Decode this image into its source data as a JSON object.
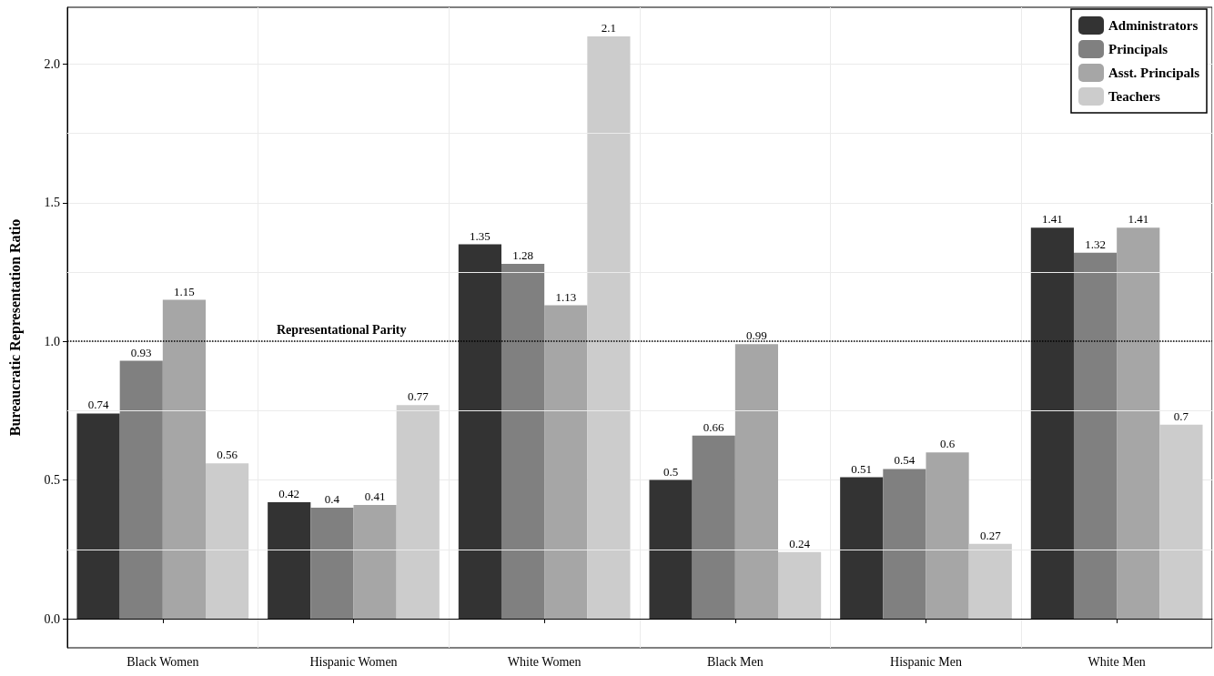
{
  "chart_data": {
    "type": "bar",
    "ylabel": "Bureaucratic Representation Ratio",
    "categories": [
      "Black Women",
      "Hispanic Women",
      "White Women",
      "Black Men",
      "Hispanic Men",
      "White Men"
    ],
    "series": [
      {
        "name": "Administrators",
        "color": "#333333",
        "values": [
          0.74,
          0.42,
          1.35,
          0.5,
          0.51,
          1.41
        ]
      },
      {
        "name": "Principals",
        "color": "#808080",
        "values": [
          0.93,
          0.4,
          1.28,
          0.66,
          0.54,
          1.32
        ]
      },
      {
        "name": "Asst. Principals",
        "color": "#a6a6a6",
        "values": [
          1.15,
          0.41,
          1.13,
          0.99,
          0.6,
          1.41
        ]
      },
      {
        "name": "Teachers",
        "color": "#cccccc",
        "values": [
          0.56,
          0.77,
          2.1,
          0.24,
          0.27,
          0.7
        ]
      }
    ],
    "ylim": [
      -0.105,
      2.205
    ],
    "yticks": [
      {
        "value": 0,
        "label": "0.0"
      },
      {
        "value": 0.25,
        "label": null
      },
      {
        "value": 0.5,
        "label": "0.5"
      },
      {
        "value": 0.75,
        "label": null
      },
      {
        "value": 1,
        "label": "1.0"
      },
      {
        "value": 1.25,
        "label": null
      },
      {
        "value": 1.5,
        "label": "1.5"
      },
      {
        "value": 1.75,
        "label": null
      },
      {
        "value": 2,
        "label": "2.0"
      }
    ],
    "ref_lines": [
      {
        "axis": "y",
        "value": 1,
        "label": "Representational Parity",
        "line_style": "dotted",
        "color": "#000000"
      }
    ],
    "data_labels": true,
    "grid": true,
    "legend": "top right"
  }
}
